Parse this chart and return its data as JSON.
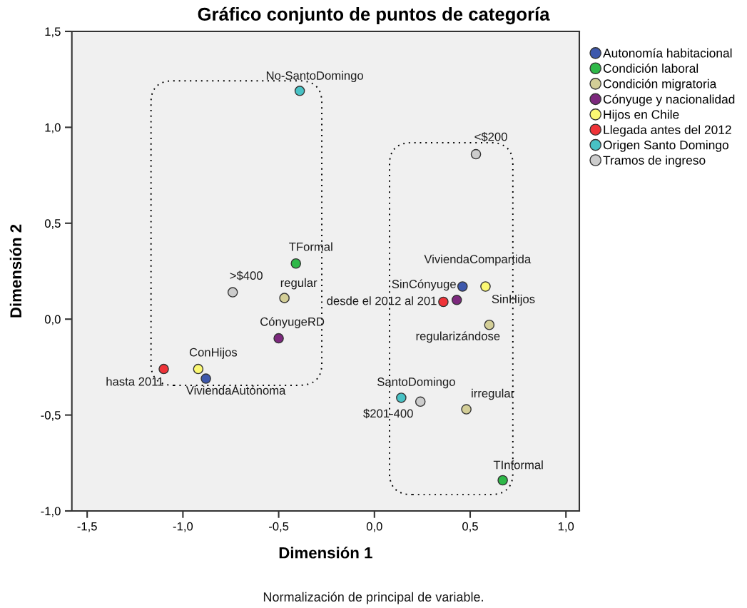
{
  "chart_data": {
    "type": "scatter",
    "title": "Gráfico conjunto de puntos de categoría",
    "xlabel": "Dimensión 1",
    "ylabel": "Dimensión 2",
    "xlim": [
      -1.58,
      1.07
    ],
    "ylim": [
      -1.0,
      1.5
    ],
    "xticks": [
      {
        "value": -1.5,
        "label": "-1,5"
      },
      {
        "value": -1.0,
        "label": "-1,0"
      },
      {
        "value": -0.5,
        "label": "-0,5"
      },
      {
        "value": 0.0,
        "label": "0,0"
      },
      {
        "value": 0.5,
        "label": "0,5"
      },
      {
        "value": 1.0,
        "label": "1,0"
      }
    ],
    "yticks": [
      {
        "value": -1.0,
        "label": "-1,0"
      },
      {
        "value": -0.5,
        "label": "-0,5"
      },
      {
        "value": 0.0,
        "label": "0,0"
      },
      {
        "value": 0.5,
        "label": "0,5"
      },
      {
        "value": 1.0,
        "label": "1,0"
      },
      {
        "value": 1.5,
        "label": "1,5"
      }
    ],
    "series": [
      {
        "name": "Autonomía habitacional",
        "color": "#3e58ac",
        "x": [
          -0.88,
          0.46
        ],
        "values": [
          -0.31,
          0.17
        ]
      },
      {
        "name": "Condición laboral",
        "color": "#2eb848",
        "x": [
          -0.41,
          0.67
        ],
        "values": [
          0.29,
          -0.84
        ]
      },
      {
        "name": "Condición migratoria",
        "color": "#d3ce97",
        "x": [
          -0.47,
          0.6,
          0.48
        ],
        "values": [
          0.11,
          -0.03,
          -0.47
        ]
      },
      {
        "name": "Cónyuge y nacionalidad",
        "color": "#7c287d",
        "x": [
          -0.5,
          0.43
        ],
        "values": [
          -0.1,
          0.1
        ]
      },
      {
        "name": "Hijos en Chile",
        "color": "#fbf873",
        "x": [
          -0.92,
          0.58
        ],
        "values": [
          -0.26,
          0.17
        ]
      },
      {
        "name": "Llegada antes del 2012",
        "color": "#ef3338",
        "x": [
          -1.1,
          0.36
        ],
        "values": [
          -0.26,
          0.09
        ]
      },
      {
        "name": "Origen Santo Domingo",
        "color": "#48c2c5",
        "x": [
          -0.39,
          0.14
        ],
        "values": [
          1.19,
          -0.41
        ]
      },
      {
        "name": "Tramos de ingreso",
        "color": "#cccccc",
        "x": [
          -0.74,
          0.53,
          0.24
        ],
        "values": [
          0.14,
          0.86,
          -0.43
        ]
      }
    ],
    "annotations": [
      {
        "text": "ViviendaAutónoma",
        "x": -0.88,
        "y": -0.31
      },
      {
        "text": "ViviendaCompartida",
        "x": 0.46,
        "y": 0.17
      },
      {
        "text": "TFormal",
        "x": -0.41,
        "y": 0.29
      },
      {
        "text": "TInformal",
        "x": 0.67,
        "y": -0.84
      },
      {
        "text": "regular",
        "x": -0.47,
        "y": 0.11
      },
      {
        "text": "regularizándose",
        "x": 0.6,
        "y": -0.03
      },
      {
        "text": "irregular",
        "x": 0.48,
        "y": -0.47
      },
      {
        "text": "CónyugeRD",
        "x": -0.5,
        "y": -0.1
      },
      {
        "text": "SinCónyuge",
        "x": 0.43,
        "y": 0.1
      },
      {
        "text": "ConHijos",
        "x": -0.92,
        "y": -0.26
      },
      {
        "text": "SinHijos",
        "x": 0.58,
        "y": 0.17
      },
      {
        "text": "hasta 2011",
        "x": -1.1,
        "y": -0.26
      },
      {
        "text": "desde el 2012 al 201",
        "x": 0.36,
        "y": 0.09
      },
      {
        "text": "No-SantoDomingo",
        "x": -0.39,
        "y": 1.19
      },
      {
        "text": "SantoDomingo",
        "x": 0.14,
        "y": -0.41
      },
      {
        "text": ">$400",
        "x": -0.74,
        "y": 0.14
      },
      {
        "text": "<$200",
        "x": 0.53,
        "y": 0.86
      },
      {
        "text": "$201-400",
        "x": 0.24,
        "y": -0.43
      },
      "Normalización de principal de variable."
    ],
    "legend": "top right",
    "grid": false,
    "marker": "circle"
  }
}
